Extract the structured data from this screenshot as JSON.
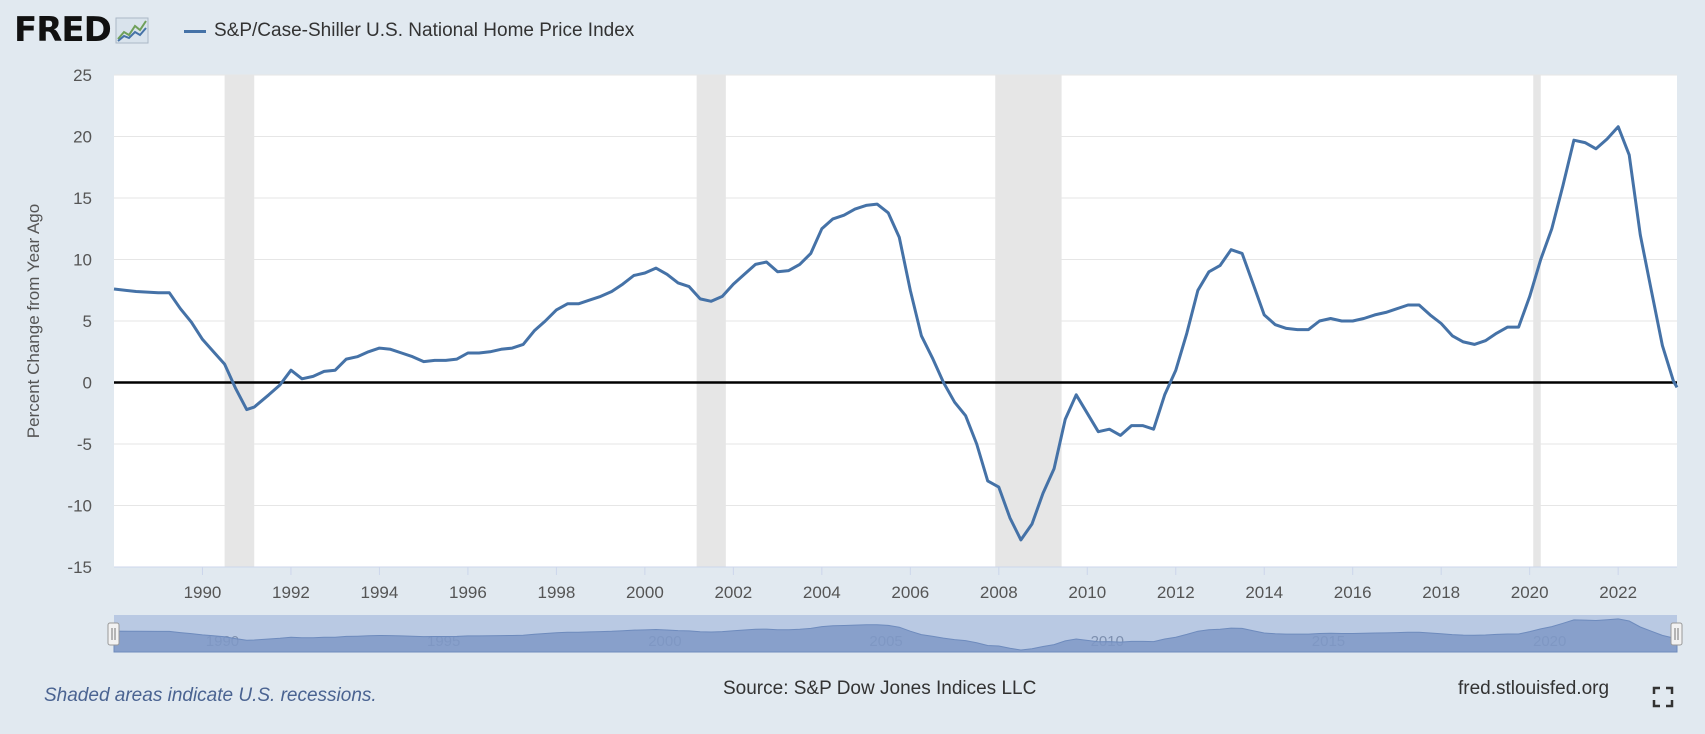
{
  "header": {
    "logo_text": "FRED",
    "logo_icon": "line-chart-icon",
    "legend_label": "S&P/Case-Shiller U.S. National Home Price Index"
  },
  "footer": {
    "note": "Shaded areas indicate U.S. recessions.",
    "source": "Source: S&P Dow Jones Indices LLC",
    "site": "fred.stlouisfed.org",
    "fullscreen_icon": "fullscreen-icon"
  },
  "colors": {
    "series": "#4572a7",
    "recession": "#e6e6e6",
    "background": "#e1e9f0",
    "navigator": "#7f99c7"
  },
  "chart_data": {
    "type": "line",
    "title": "",
    "ylabel": "Percent Change from Year Ago",
    "xlabel": "",
    "ylim": [
      -15,
      25
    ],
    "xlim": [
      1988.0,
      2023.33
    ],
    "yticks": [
      25,
      20,
      15,
      10,
      5,
      0,
      -5,
      -10,
      -15
    ],
    "xticks": [
      1990,
      1992,
      1994,
      1996,
      1998,
      2000,
      2002,
      2004,
      2006,
      2008,
      2010,
      2012,
      2014,
      2016,
      2018,
      2020,
      2022
    ],
    "navigator_labels": [
      1990,
      1995,
      2000,
      2005,
      2010,
      2015,
      2020
    ],
    "grid": true,
    "zero_line": true,
    "legend": "top-left",
    "recessions": [
      [
        1990.5,
        1991.17
      ],
      [
        2001.17,
        2001.83
      ],
      [
        2007.92,
        2009.42
      ],
      [
        2020.08,
        2020.25
      ]
    ],
    "series": [
      {
        "name": "S&P/Case-Shiller U.S. National Home Price Index",
        "x": [
          1988.0,
          1988.5,
          1989.0,
          1989.25,
          1989.5,
          1989.75,
          1990.0,
          1990.25,
          1990.5,
          1990.75,
          1991.0,
          1991.17,
          1991.5,
          1991.75,
          1992.0,
          1992.25,
          1992.5,
          1992.75,
          1993.0,
          1993.25,
          1993.5,
          1993.75,
          1994.0,
          1994.25,
          1994.5,
          1994.75,
          1995.0,
          1995.25,
          1995.5,
          1995.75,
          1996.0,
          1996.25,
          1996.5,
          1996.75,
          1997.0,
          1997.25,
          1997.5,
          1997.75,
          1998.0,
          1998.25,
          1998.5,
          1998.75,
          1999.0,
          1999.25,
          1999.5,
          1999.75,
          2000.0,
          2000.25,
          2000.5,
          2000.75,
          2001.0,
          2001.25,
          2001.5,
          2001.75,
          2002.0,
          2002.25,
          2002.5,
          2002.75,
          2003.0,
          2003.25,
          2003.5,
          2003.75,
          2004.0,
          2004.25,
          2004.5,
          2004.75,
          2005.0,
          2005.25,
          2005.5,
          2005.75,
          2006.0,
          2006.25,
          2006.5,
          2006.75,
          2007.0,
          2007.25,
          2007.5,
          2007.75,
          2008.0,
          2008.25,
          2008.5,
          2008.75,
          2009.0,
          2009.25,
          2009.5,
          2009.75,
          2010.0,
          2010.25,
          2010.5,
          2010.75,
          2011.0,
          2011.25,
          2011.5,
          2011.75,
          2012.0,
          2012.25,
          2012.5,
          2012.75,
          2013.0,
          2013.25,
          2013.5,
          2013.75,
          2014.0,
          2014.25,
          2014.5,
          2014.75,
          2015.0,
          2015.25,
          2015.5,
          2015.75,
          2016.0,
          2016.25,
          2016.5,
          2016.75,
          2017.0,
          2017.25,
          2017.5,
          2017.75,
          2018.0,
          2018.25,
          2018.5,
          2018.75,
          2019.0,
          2019.25,
          2019.5,
          2019.75,
          2020.0,
          2020.25,
          2020.5,
          2020.75,
          2021.0,
          2021.25,
          2021.5,
          2021.75,
          2022.0,
          2022.25,
          2022.5,
          2022.75,
          2023.0,
          2023.25,
          2023.33
        ],
        "values": [
          7.6,
          7.4,
          7.3,
          7.3,
          6.0,
          4.9,
          3.5,
          2.5,
          1.5,
          -0.5,
          -2.2,
          -2.0,
          -1.0,
          -0.2,
          1.0,
          0.3,
          0.5,
          0.9,
          1.0,
          1.9,
          2.1,
          2.5,
          2.8,
          2.7,
          2.4,
          2.1,
          1.7,
          1.8,
          1.8,
          1.9,
          2.4,
          2.4,
          2.5,
          2.7,
          2.8,
          3.1,
          4.2,
          5.0,
          5.9,
          6.4,
          6.4,
          6.7,
          7.0,
          7.4,
          8.0,
          8.7,
          8.9,
          9.3,
          8.8,
          8.1,
          7.8,
          6.8,
          6.6,
          7.0,
          8.0,
          8.8,
          9.6,
          9.8,
          9.0,
          9.1,
          9.6,
          10.5,
          12.5,
          13.3,
          13.6,
          14.1,
          14.4,
          14.5,
          13.8,
          11.8,
          7.5,
          3.8,
          2.0,
          0.0,
          -1.6,
          -2.7,
          -5.0,
          -8.0,
          -8.5,
          -11.0,
          -12.8,
          -11.5,
          -9.0,
          -7.0,
          -3.0,
          -1.0,
          -2.5,
          -4.0,
          -3.8,
          -4.3,
          -3.5,
          -3.5,
          -3.8,
          -1.0,
          1.0,
          4.0,
          7.5,
          9.0,
          9.5,
          10.8,
          10.5,
          8.0,
          5.5,
          4.7,
          4.4,
          4.3,
          4.3,
          5.0,
          5.2,
          5.0,
          5.0,
          5.2,
          5.5,
          5.7,
          6.0,
          6.3,
          6.3,
          5.5,
          4.8,
          3.8,
          3.3,
          3.1,
          3.4,
          4.0,
          4.5,
          4.5,
          7.0,
          10.0,
          12.5,
          16.0,
          19.7,
          19.5,
          19.0,
          19.8,
          20.8,
          18.5,
          12.0,
          7.5,
          3.0,
          0.1,
          -0.4
        ]
      }
    ]
  }
}
